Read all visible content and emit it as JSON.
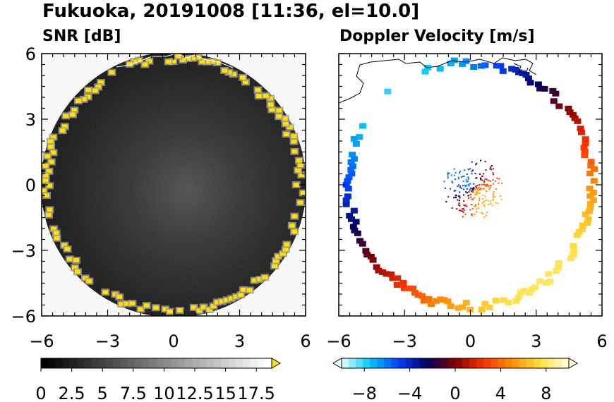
{
  "figure": {
    "title": "Fukuoka, 20191008 [11:36, el=10.0]"
  },
  "chart_data": [
    {
      "type": "heatmap",
      "title": "SNR [dB]",
      "xlim": [
        -6,
        6
      ],
      "ylim": [
        -6,
        6
      ],
      "x_ticks": [
        -6,
        -3,
        0,
        3,
        6
      ],
      "y_ticks": [
        6,
        3,
        0,
        -3,
        -6
      ],
      "x_tick_labels": [
        "−6",
        "−3",
        "0",
        "3",
        "6"
      ],
      "y_tick_labels": [
        "6",
        "3",
        "0",
        "−3",
        "−6"
      ],
      "grid": false,
      "colorbar": {
        "min": 0,
        "max": 18.75,
        "step": 0.625,
        "extend": "max",
        "tick_values": [
          0,
          2.5,
          5,
          7.5,
          10,
          12.5,
          15,
          17.5
        ],
        "tick_labels": [
          "0",
          "2.5",
          "5",
          "7.5",
          "10",
          "12.5",
          "15",
          "17.5"
        ],
        "colors": [
          "#000000",
          "#ffffff"
        ],
        "over_color": "#ffe000"
      },
      "ring_radius": 6.0,
      "description_of_field": "radar scan disk; dark noise background with strong echoes at range ring edge"
    },
    {
      "type": "heatmap",
      "title": "Doppler Velocity [m/s]",
      "xlim": [
        -6,
        6
      ],
      "ylim": [
        -6,
        6
      ],
      "x_ticks": [
        -6,
        -3,
        0,
        3,
        6
      ],
      "y_ticks": [
        6,
        3,
        0,
        -3,
        -6
      ],
      "x_tick_labels": [
        "−6",
        "−3",
        "0",
        "3",
        "6"
      ],
      "y_tick_labels": [
        "6",
        "3",
        "0",
        "−3",
        "−6"
      ],
      "grid": false,
      "colorbar": {
        "min": -10,
        "max": 10,
        "extend": "both",
        "tick_values": [
          -8,
          -4,
          0,
          4,
          8
        ],
        "tick_labels": [
          "−8",
          "−4",
          "0",
          "4",
          "8"
        ],
        "colors": [
          "#e6ffff",
          "#00c8ff",
          "#0040ff",
          "#000060",
          "#800000",
          "#ff3000",
          "#ff9000",
          "#ffe040",
          "#ffffe0"
        ]
      },
      "ring_radius": 5.9
    }
  ]
}
